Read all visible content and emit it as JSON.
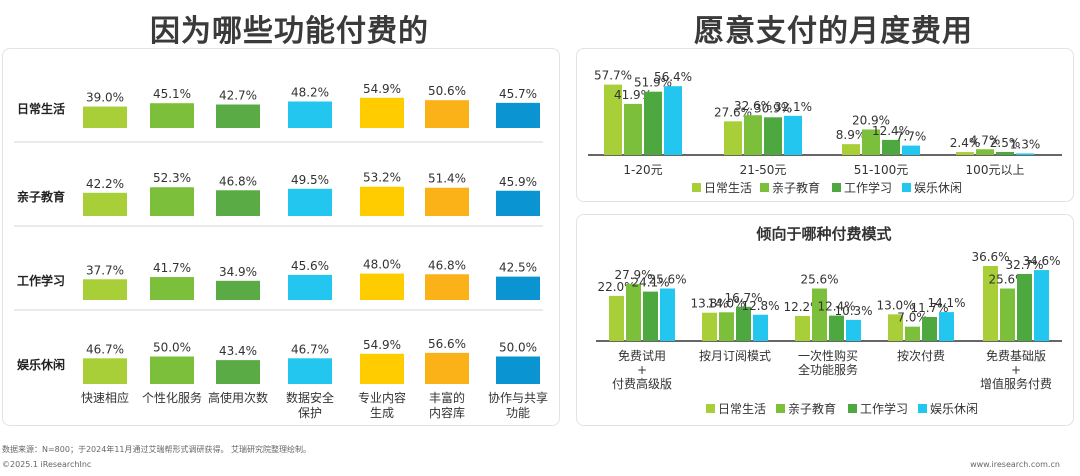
{
  "colors": {
    "lime": "#a8cf38",
    "green": "#7cbf3a",
    "dgreen": "#5aaa45",
    "cyan": "#22c6ee",
    "yellow": "#ffcc00",
    "orange": "#fbb218",
    "blue": "#0a95d2"
  },
  "left_title": "因为哪些功能付费的",
  "right_title": "愿意支付的月度费用",
  "right_bottom_title": "倾向于哪种付费模式",
  "footer_source": "数据来源：N=800；于2024年11月通过艾瑞帮形式调研获得。 艾瑞研究院整理绘制。",
  "footer_copyright": "©2025.1 iResearchInc",
  "footer_url": "www.iresearch.com.cn",
  "chart_data": [
    {
      "type": "bar",
      "rows": [
        "日常生活",
        "亲子教育",
        "工作学习",
        "娱乐休闲"
      ],
      "categories": [
        "快速相应",
        "个性化服务",
        "高使用次数",
        "数据安全\n保护",
        "专业内容\n生成",
        "丰富的\n内容库",
        "协作与共享\n功能"
      ],
      "values": [
        [
          39.0,
          45.1,
          42.7,
          48.2,
          54.9,
          50.6,
          45.7
        ],
        [
          42.2,
          52.3,
          46.8,
          49.5,
          53.2,
          51.4,
          45.9
        ],
        [
          37.7,
          41.7,
          34.9,
          45.6,
          48.0,
          46.8,
          42.5
        ],
        [
          46.7,
          50.0,
          43.4,
          46.7,
          54.9,
          56.6,
          50.0
        ]
      ],
      "labels": [
        [
          "39.0%",
          "45.1%",
          "42.7%",
          "48.2%",
          "54.9%",
          "50.6%",
          "45.7%"
        ],
        [
          "42.2%",
          "52.3%",
          "46.8%",
          "49.5%",
          "53.2%",
          "51.4%",
          "45.9%"
        ],
        [
          "37.7%",
          "41.7%",
          "34.9%",
          "45.6%",
          "48.0%",
          "46.8%",
          "42.5%"
        ],
        [
          "46.7%",
          "50.0%",
          "43.4%",
          "46.7%",
          "54.9%",
          "56.6%",
          "50.0%"
        ]
      ],
      "colors": [
        "#a8cf38",
        "#7cbf3a",
        "#5aaa45",
        "#22c6ee",
        "#ffcc00",
        "#fbb218",
        "#0a95d2"
      ]
    },
    {
      "type": "bar",
      "categories": [
        "1-20元",
        "21-50元",
        "51-100元",
        "100元以上"
      ],
      "series": [
        {
          "name": "日常生活",
          "values": [
            57.7,
            27.6,
            8.9,
            2.4
          ],
          "labels": [
            "57.7%",
            "27.6%",
            "8.9%",
            "2.4%"
          ],
          "color": "#a8cf38"
        },
        {
          "name": "亲子教育",
          "values": [
            41.9,
            32.6,
            20.9,
            4.7
          ],
          "labels": [
            "41.9%",
            "32.6%",
            "20.9%",
            "4.7%"
          ],
          "color": "#7cbf3a"
        },
        {
          "name": "工作学习",
          "values": [
            51.9,
            30.9,
            12.4,
            2.5
          ],
          "labels": [
            "51.9%",
            "30.9%",
            "12.4%",
            "2.5%"
          ],
          "color": "#4ea840"
        },
        {
          "name": "娱乐休闲",
          "values": [
            56.4,
            32.1,
            7.7,
            1.3
          ],
          "labels": [
            "56.4%",
            "32.1%",
            "7.7%",
            "1.3%"
          ],
          "color": "#22c6ee"
        }
      ],
      "legend": "bottom"
    },
    {
      "type": "bar",
      "title": "倾向于哪种付费模式",
      "categories": [
        "免费试用\n+\n付费高级版",
        "按月订阅模式",
        "一次性购买\n全功能服务",
        "按次付费",
        "免费基础版\n+\n增值服务付费"
      ],
      "series": [
        {
          "name": "日常生活",
          "values": [
            22.0,
            13.8,
            12.2,
            13.0,
            36.6
          ],
          "labels": [
            "22.0%",
            "13.8%",
            "12.2%",
            "13.0%",
            "36.6%"
          ],
          "color": "#a8cf38"
        },
        {
          "name": "亲子教育",
          "values": [
            27.9,
            14.0,
            25.6,
            7.0,
            25.6
          ],
          "labels": [
            "27.9%",
            "14.0%",
            "25.6%",
            "7.0%",
            "25.6%"
          ],
          "color": "#7cbf3a"
        },
        {
          "name": "工作学习",
          "values": [
            24.1,
            16.7,
            12.4,
            11.7,
            32.7
          ],
          "labels": [
            "24.1%",
            "16.7%",
            "12.4%",
            "11.7%",
            "32.7%"
          ],
          "color": "#4ea840"
        },
        {
          "name": "娱乐休闲",
          "values": [
            25.6,
            12.8,
            10.3,
            14.1,
            34.6
          ],
          "labels": [
            "25.6%",
            "12.8%",
            "10.3%",
            "14.1%",
            "34.6%"
          ],
          "color": "#22c6ee"
        }
      ],
      "legend": "bottom"
    }
  ]
}
